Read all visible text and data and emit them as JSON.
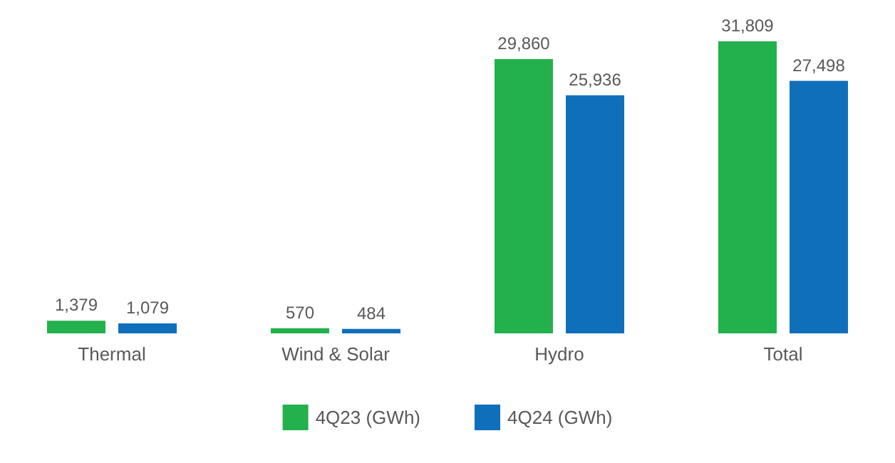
{
  "chart_data": {
    "type": "bar",
    "categories": [
      "Thermal",
      "Wind & Solar",
      "Hydro",
      "Total"
    ],
    "series": [
      {
        "name": "4Q23 (GWh)",
        "color": "#22b14c",
        "values": [
          1379,
          570,
          29860,
          31809
        ],
        "value_labels": [
          "1,379",
          "570",
          "29,860",
          "31,809"
        ]
      },
      {
        "name": "4Q24 (GWh)",
        "color": "#0f6fba",
        "values": [
          1079,
          484,
          25936,
          27498
        ],
        "value_labels": [
          "1,079",
          "484",
          "25,936",
          "27,498"
        ]
      }
    ],
    "legend": "bottom"
  }
}
